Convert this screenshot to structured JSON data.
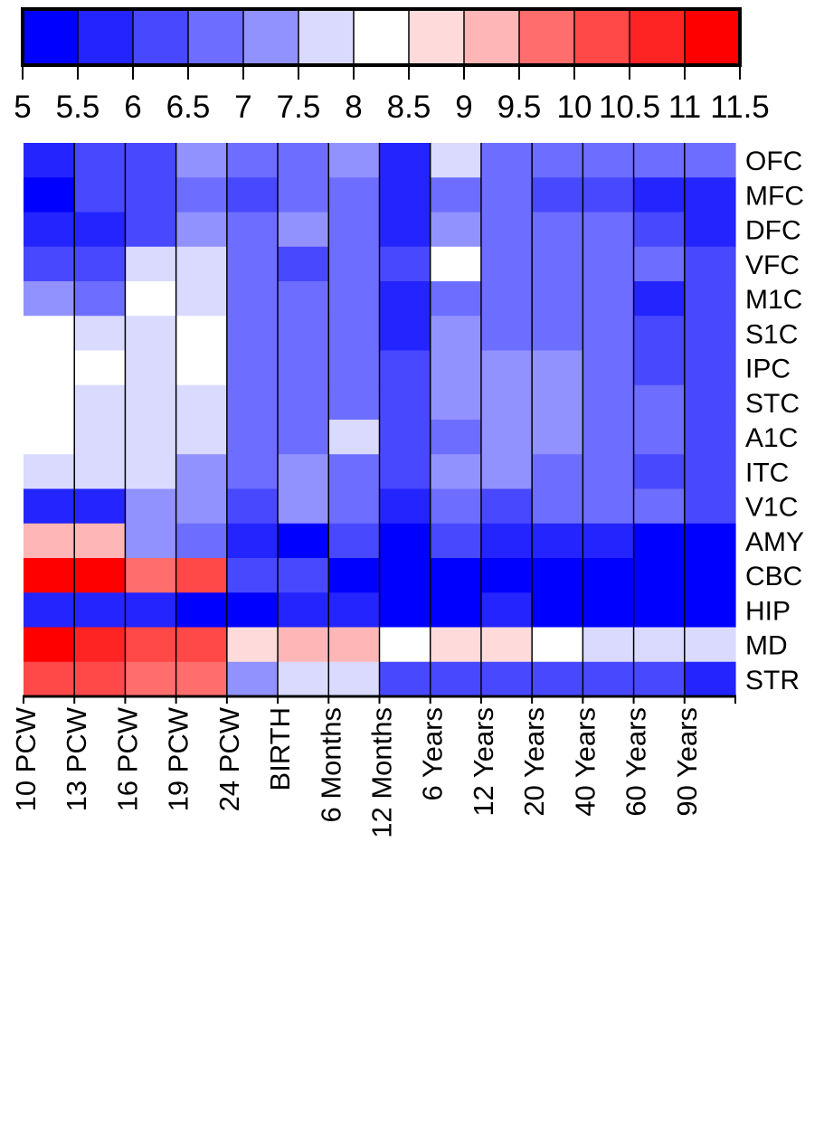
{
  "chart_data": {
    "type": "heatmap",
    "colorbar": {
      "ticks": [
        "5",
        "5.5",
        "6",
        "6.5",
        "7",
        "7.5",
        "8",
        "8.5",
        "9",
        "9.5",
        "10",
        "10.5",
        "11",
        "11.5"
      ],
      "bin_colors": [
        "#0000ff",
        "#2424ff",
        "#4848ff",
        "#6d6dff",
        "#9292ff",
        "#dadaff",
        "#ffffff",
        "#ffdada",
        "#ffb6b6",
        "#ff6d6d",
        "#ff4848",
        "#ff2424",
        "#ff0000"
      ]
    },
    "rows": [
      "OFC",
      "MFC",
      "DFC",
      "VFC",
      "M1C",
      "S1C",
      "IPC",
      "STC",
      "A1C",
      "ITC",
      "V1C",
      "AMY",
      "CBC",
      "HIP",
      "MD",
      "STR"
    ],
    "columns": [
      "10 PCW",
      "13 PCW",
      "16 PCW",
      "19 PCW",
      "24 PCW",
      "BIRTH",
      "6 Months",
      "12 Months",
      "6 Years",
      "12 Years",
      "20 Years",
      "40 Years",
      "60 Years",
      "90 Years"
    ],
    "values": [
      [
        5.5,
        6,
        6,
        7,
        6.5,
        6.5,
        7,
        5.5,
        7.5,
        6.5,
        6.5,
        6.5,
        6.5,
        6.5
      ],
      [
        5,
        6,
        6,
        6.5,
        6,
        6.5,
        6.5,
        5.5,
        6.5,
        6.5,
        6,
        6,
        5.5,
        5.5
      ],
      [
        5.5,
        5.5,
        6,
        7,
        6.5,
        7,
        6.5,
        5.5,
        7,
        6.5,
        6.5,
        6.5,
        6,
        5.5
      ],
      [
        6,
        6,
        7.5,
        7.5,
        6.5,
        6,
        6.5,
        6,
        8,
        6.5,
        6.5,
        6.5,
        6.5,
        6
      ],
      [
        7,
        6.5,
        8,
        7.5,
        6.5,
        6.5,
        6.5,
        5.5,
        6.5,
        6.5,
        6.5,
        6.5,
        5.5,
        6
      ],
      [
        8,
        7.5,
        7.5,
        8,
        6.5,
        6.5,
        6.5,
        5.5,
        7,
        6.5,
        6.5,
        6.5,
        6,
        6
      ],
      [
        8,
        8,
        7.5,
        8,
        6.5,
        6.5,
        6.5,
        6,
        7,
        7,
        7,
        6.5,
        6,
        6
      ],
      [
        8,
        7.5,
        7.5,
        7.5,
        6.5,
        6.5,
        6.5,
        6,
        7,
        7,
        7,
        6.5,
        6.5,
        6
      ],
      [
        8,
        7.5,
        7.5,
        7.5,
        6.5,
        6.5,
        7.5,
        6,
        6.5,
        7,
        7,
        6.5,
        6.5,
        6
      ],
      [
        7.5,
        7.5,
        7.5,
        7,
        6.5,
        7,
        6.5,
        6,
        7,
        7,
        6.5,
        6.5,
        6,
        6
      ],
      [
        5.5,
        5.5,
        7,
        7,
        6,
        7,
        6.5,
        5.5,
        6.5,
        6,
        6.5,
        6.5,
        6.5,
        6
      ],
      [
        9,
        9,
        7,
        6.5,
        5.5,
        5,
        6,
        5,
        6,
        5.5,
        5.5,
        5.5,
        5,
        5
      ],
      [
        11,
        11,
        9.5,
        10,
        6,
        6,
        5,
        5,
        5,
        5,
        5,
        5,
        5,
        5
      ],
      [
        5.5,
        5.5,
        5.5,
        5,
        5,
        5.5,
        5.5,
        5,
        5,
        5.5,
        5,
        5,
        5,
        5
      ],
      [
        11,
        10.5,
        10,
        10,
        8.5,
        9,
        9,
        8,
        8.5,
        8.5,
        8,
        7.5,
        7.5,
        7.5
      ],
      [
        10,
        10,
        9.5,
        9.5,
        7,
        7.5,
        7.5,
        6,
        6,
        6,
        6,
        6,
        6,
        5.5
      ]
    ]
  }
}
